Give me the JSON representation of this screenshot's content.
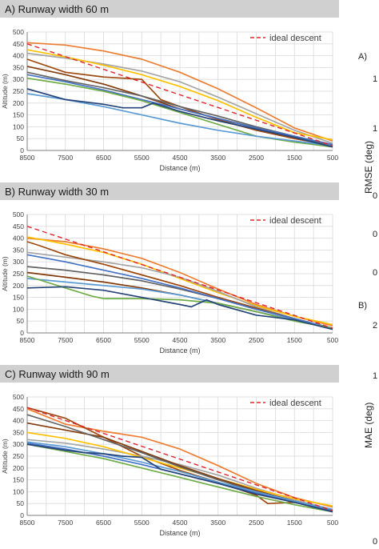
{
  "colors": {
    "header_bg": "#d0d0d0",
    "grid": "#d9d9d9",
    "axis": "#7f7f7f",
    "ideal": "#e0262e"
  },
  "side_labels": {
    "a_letter": "A)",
    "a_tick_1": "1",
    "a_tick_2": "1",
    "a_axis": "RMSE (deg)",
    "a_tick_3": "0",
    "a_tick_4": "0",
    "a_tick_5": "0",
    "b_letter": "B)",
    "b_tick_1": "2",
    "b_tick_2": "1",
    "b_axis": "MAE (deg)",
    "b_tick_3": "0"
  },
  "chart_data": [
    {
      "type": "line",
      "title": "A)  Runway width 60 m",
      "xlabel": "Distance (m)",
      "ylabel": "Altitude (m)",
      "x_ticks": [
        "8500",
        "7500",
        "6500",
        "5500",
        "4500",
        "3500",
        "2500",
        "1500",
        "500"
      ],
      "y_ticks": [
        "0",
        "50",
        "100",
        "150",
        "200",
        "250",
        "300",
        "350",
        "400",
        "450",
        "500"
      ],
      "xlim": [
        8500,
        500
      ],
      "ylim": [
        0,
        500
      ],
      "grid": true,
      "legend": "top-right",
      "ideal": {
        "name": "ideal descent",
        "x": [
          8500,
          500
        ],
        "y": [
          450,
          20
        ]
      },
      "series": [
        {
          "color": "#ed7d31",
          "x": [
            8500,
            7500,
            6500,
            5500,
            4500,
            3500,
            2500,
            1500,
            500
          ],
          "y": [
            455,
            445,
            420,
            385,
            330,
            260,
            180,
            95,
            40
          ]
        },
        {
          "color": "#a5a5a5",
          "x": [
            8500,
            7500,
            6500,
            5500,
            4500,
            3500,
            2500,
            1500,
            500
          ],
          "y": [
            410,
            390,
            365,
            335,
            290,
            225,
            155,
            85,
            30
          ]
        },
        {
          "color": "#ffc000",
          "x": [
            8500,
            7500,
            6500,
            5500,
            4500,
            3500,
            2500,
            1500,
            500
          ],
          "y": [
            425,
            395,
            360,
            320,
            270,
            210,
            140,
            75,
            45
          ]
        },
        {
          "color": "#9e480e",
          "x": [
            8500,
            7500,
            6500,
            5500,
            5000,
            4500,
            3500,
            2500,
            1500,
            500
          ],
          "y": [
            385,
            330,
            310,
            300,
            215,
            185,
            130,
            85,
            50,
            20
          ]
        },
        {
          "color": "#843c0c",
          "x": [
            8500,
            7500,
            6500,
            5500,
            4500,
            3500,
            2500,
            1500,
            500
          ],
          "y": [
            355,
            320,
            280,
            230,
            175,
            135,
            95,
            55,
            20
          ]
        },
        {
          "color": "#636363",
          "x": [
            8500,
            7500,
            6500,
            5500,
            4500,
            3500,
            2500,
            1500,
            500
          ],
          "y": [
            330,
            295,
            265,
            230,
            185,
            145,
            100,
            60,
            20
          ]
        },
        {
          "color": "#4472c4",
          "x": [
            8500,
            7500,
            6500,
            5500,
            4500,
            3500,
            2500,
            1500,
            500
          ],
          "y": [
            320,
            290,
            255,
            215,
            175,
            135,
            95,
            60,
            25
          ]
        },
        {
          "color": "#70ad47",
          "x": [
            8500,
            7500,
            6500,
            5500,
            4500,
            3500,
            2500,
            1500,
            500
          ],
          "y": [
            305,
            280,
            250,
            210,
            160,
            110,
            60,
            35,
            15
          ]
        },
        {
          "color": "#5b9bd5",
          "x": [
            8500,
            7500,
            6500,
            5500,
            4500,
            3500,
            2500,
            1500,
            500
          ],
          "y": [
            240,
            215,
            185,
            150,
            115,
            85,
            60,
            40,
            20
          ]
        },
        {
          "color": "#264478",
          "x": [
            8500,
            7500,
            7000,
            6500,
            6000,
            5500,
            5200,
            4500,
            3500,
            2500,
            1500,
            500
          ],
          "y": [
            260,
            215,
            205,
            195,
            180,
            180,
            200,
            165,
            125,
            90,
            55,
            15
          ]
        }
      ]
    },
    {
      "type": "line",
      "title": "B)  Runway width 30 m",
      "xlabel": "Distance (m)",
      "ylabel": "Altitude (m)",
      "x_ticks": [
        "8500",
        "7500",
        "6500",
        "5500",
        "4500",
        "3500",
        "2500",
        "1500",
        "500"
      ],
      "y_ticks": [
        "0",
        "50",
        "100",
        "150",
        "200",
        "250",
        "300",
        "350",
        "400",
        "450",
        "500"
      ],
      "xlim": [
        8500,
        500
      ],
      "ylim": [
        0,
        500
      ],
      "grid": true,
      "legend": "top-right",
      "ideal": {
        "name": "ideal descent",
        "x": [
          8500,
          500
        ],
        "y": [
          450,
          20
        ]
      },
      "series": [
        {
          "color": "#ed7d31",
          "x": [
            8500,
            7500,
            6500,
            5500,
            4500,
            3500,
            2500,
            1500,
            500
          ],
          "y": [
            400,
            385,
            355,
            315,
            255,
            185,
            120,
            70,
            30
          ]
        },
        {
          "color": "#ffc000",
          "x": [
            8500,
            7500,
            6500,
            5500,
            4500,
            3500,
            2500,
            1500,
            500
          ],
          "y": [
            405,
            375,
            340,
            290,
            230,
            170,
            115,
            70,
            35
          ]
        },
        {
          "color": "#a5a5a5",
          "x": [
            8500,
            7500,
            6500,
            5500,
            4500,
            3500,
            2500,
            1500,
            500
          ],
          "y": [
            340,
            320,
            300,
            275,
            235,
            175,
            110,
            60,
            20
          ]
        },
        {
          "color": "#9e480e",
          "x": [
            8500,
            8200,
            7500,
            6500,
            5500,
            4500,
            3500,
            2500,
            1500,
            500
          ],
          "y": [
            385,
            370,
            330,
            290,
            245,
            200,
            150,
            105,
            60,
            20
          ]
        },
        {
          "color": "#636363",
          "x": [
            8500,
            7500,
            6500,
            5500,
            4500,
            3500,
            2500,
            1500,
            500
          ],
          "y": [
            280,
            265,
            245,
            220,
            185,
            145,
            100,
            60,
            20
          ]
        },
        {
          "color": "#843c0c",
          "x": [
            8500,
            7500,
            6500,
            5500,
            4500,
            3500,
            2500,
            1500,
            500
          ],
          "y": [
            255,
            235,
            215,
            190,
            160,
            125,
            90,
            55,
            20
          ]
        },
        {
          "color": "#4472c4",
          "x": [
            8500,
            7500,
            6500,
            5500,
            4500,
            3500,
            2500,
            1500,
            500
          ],
          "y": [
            330,
            300,
            265,
            230,
            190,
            145,
            100,
            60,
            20
          ]
        },
        {
          "color": "#5b9bd5",
          "x": [
            8500,
            7500,
            6500,
            5500,
            4500,
            3500,
            2500,
            1500,
            500
          ],
          "y": [
            230,
            215,
            200,
            185,
            160,
            125,
            90,
            55,
            20
          ]
        },
        {
          "color": "#70ad47",
          "x": [
            8500,
            7500,
            6800,
            6500,
            5500,
            4500,
            3500,
            2500,
            1500,
            500
          ],
          "y": [
            240,
            190,
            155,
            145,
            145,
            140,
            125,
            90,
            50,
            20
          ]
        },
        {
          "color": "#264478",
          "x": [
            8500,
            7500,
            6500,
            5500,
            4500,
            4200,
            3800,
            3500,
            2500,
            1500,
            500
          ],
          "y": [
            190,
            195,
            180,
            150,
            120,
            110,
            140,
            120,
            75,
            55,
            15
          ]
        }
      ]
    },
    {
      "type": "line",
      "title": "C)  Runway width 90 m",
      "xlabel": "Distance (m)",
      "ylabel": "Altitude (m)",
      "x_ticks": [
        "8500",
        "7500",
        "6500",
        "5500",
        "4500",
        "3500",
        "2500",
        "1500",
        "500"
      ],
      "y_ticks": [
        "0",
        "50",
        "100",
        "150",
        "200",
        "250",
        "300",
        "350",
        "400",
        "450",
        "500"
      ],
      "xlim": [
        8500,
        500
      ],
      "ylim": [
        0,
        500
      ],
      "grid": true,
      "legend": "top-right",
      "ideal": {
        "name": "ideal descent",
        "x": [
          8500,
          500
        ],
        "y": [
          455,
          20
        ]
      },
      "series": [
        {
          "color": "#ed7d31",
          "x": [
            8500,
            7500,
            6500,
            5500,
            4500,
            3500,
            2500,
            1500,
            500
          ],
          "y": [
            450,
            385,
            355,
            330,
            280,
            210,
            135,
            75,
            35
          ]
        },
        {
          "color": "#9e480e",
          "x": [
            8500,
            7500,
            6500,
            6000,
            5500,
            4500,
            3500,
            2500,
            2200,
            1500,
            500
          ],
          "y": [
            455,
            410,
            330,
            290,
            250,
            190,
            140,
            85,
            50,
            55,
            20
          ]
        },
        {
          "color": "#a5a5a5",
          "x": [
            8500,
            7500,
            6500,
            5500,
            4500,
            3500,
            2500,
            1500,
            500
          ],
          "y": [
            320,
            305,
            280,
            250,
            215,
            170,
            115,
            65,
            25
          ]
        },
        {
          "color": "#ffc000",
          "x": [
            8500,
            7500,
            6500,
            5500,
            4500,
            3500,
            2500,
            1500,
            500
          ],
          "y": [
            350,
            325,
            290,
            245,
            200,
            155,
            110,
            70,
            40
          ]
        },
        {
          "color": "#843c0c",
          "x": [
            8500,
            7500,
            6500,
            5500,
            4500,
            3500,
            2500,
            1500,
            500
          ],
          "y": [
            390,
            360,
            330,
            270,
            210,
            155,
            105,
            60,
            20
          ]
        },
        {
          "color": "#636363",
          "x": [
            8500,
            7500,
            6500,
            5500,
            4500,
            3500,
            2500,
            1500,
            500
          ],
          "y": [
            425,
            375,
            320,
            265,
            205,
            150,
            100,
            55,
            20
          ]
        },
        {
          "color": "#4472c4",
          "x": [
            8500,
            7500,
            6500,
            5500,
            4500,
            3500,
            2500,
            1500,
            500
          ],
          "y": [
            305,
            280,
            250,
            215,
            175,
            135,
            95,
            55,
            20
          ]
        },
        {
          "color": "#5b9bd5",
          "x": [
            8500,
            7500,
            6500,
            5500,
            4500,
            3500,
            2500,
            1500,
            500
          ],
          "y": [
            310,
            290,
            260,
            225,
            185,
            140,
            100,
            60,
            25
          ]
        },
        {
          "color": "#70ad47",
          "x": [
            8500,
            7500,
            6500,
            5500,
            4500,
            3500,
            2500,
            1500,
            500
          ],
          "y": [
            300,
            270,
            240,
            200,
            160,
            120,
            80,
            45,
            15
          ]
        },
        {
          "color": "#264478",
          "x": [
            8500,
            7500,
            7000,
            6500,
            6000,
            5500,
            5000,
            4500,
            3500,
            2500,
            1500,
            500
          ],
          "y": [
            300,
            275,
            265,
            260,
            250,
            245,
            195,
            175,
            135,
            90,
            55,
            15
          ]
        }
      ]
    }
  ]
}
